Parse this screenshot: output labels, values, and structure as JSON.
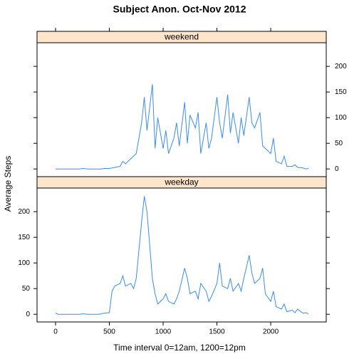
{
  "chart_data": {
    "type": "line",
    "title": "Subject Anon. Oct-Nov 2012",
    "xlabel": "Time interval 0=12am, 1200=12pm",
    "ylabel": "Average Steps",
    "color": "#3a8cf0",
    "xlim": [
      -172,
      2516
    ],
    "xticks": [
      0,
      500,
      1000,
      1500,
      2000
    ],
    "ylim": [
      -15,
      246
    ],
    "yticks": [
      0,
      50,
      100,
      150,
      200
    ],
    "x": [
      0,
      25,
      50,
      100,
      125,
      150,
      200,
      225,
      250,
      300,
      325,
      350,
      400,
      425,
      450,
      500,
      525,
      550,
      600,
      625,
      650,
      700,
      725,
      750,
      800,
      825,
      850,
      900,
      925,
      950,
      1000,
      1025,
      1050,
      1100,
      1125,
      1150,
      1200,
      1225,
      1250,
      1300,
      1325,
      1350,
      1400,
      1425,
      1450,
      1500,
      1525,
      1550,
      1600,
      1625,
      1650,
      1700,
      1725,
      1750,
      1800,
      1825,
      1850,
      1900,
      1925,
      1950,
      2000,
      2025,
      2050,
      2100,
      2125,
      2150,
      2200,
      2225,
      2250,
      2300,
      2325,
      2350
    ],
    "panels": [
      {
        "name": "weekend",
        "values": [
          0,
          0,
          0,
          0,
          0,
          0,
          0,
          0,
          1,
          0,
          0,
          0,
          0,
          0,
          1,
          1,
          2,
          3,
          5,
          15,
          10,
          20,
          25,
          30,
          90,
          140,
          75,
          165,
          40,
          100,
          40,
          75,
          30,
          60,
          90,
          45,
          130,
          50,
          105,
          80,
          110,
          30,
          90,
          40,
          60,
          140,
          90,
          60,
          145,
          70,
          110,
          50,
          100,
          65,
          140,
          90,
          80,
          110,
          45,
          40,
          30,
          60,
          15,
          10,
          25,
          5,
          5,
          8,
          3,
          2,
          0,
          1
        ]
      },
      {
        "name": "weekday",
        "values": [
          2,
          0,
          0,
          0,
          0,
          0,
          0,
          0,
          1,
          0,
          0,
          0,
          0,
          1,
          2,
          3,
          45,
          55,
          60,
          75,
          55,
          60,
          50,
          70,
          180,
          230,
          200,
          70,
          40,
          20,
          30,
          40,
          25,
          20,
          30,
          45,
          90,
          70,
          40,
          45,
          30,
          60,
          45,
          25,
          35,
          60,
          100,
          55,
          50,
          70,
          45,
          60,
          45,
          70,
          115,
          80,
          60,
          70,
          90,
          40,
          25,
          45,
          15,
          10,
          20,
          5,
          8,
          3,
          10,
          2,
          3,
          1
        ]
      }
    ]
  }
}
